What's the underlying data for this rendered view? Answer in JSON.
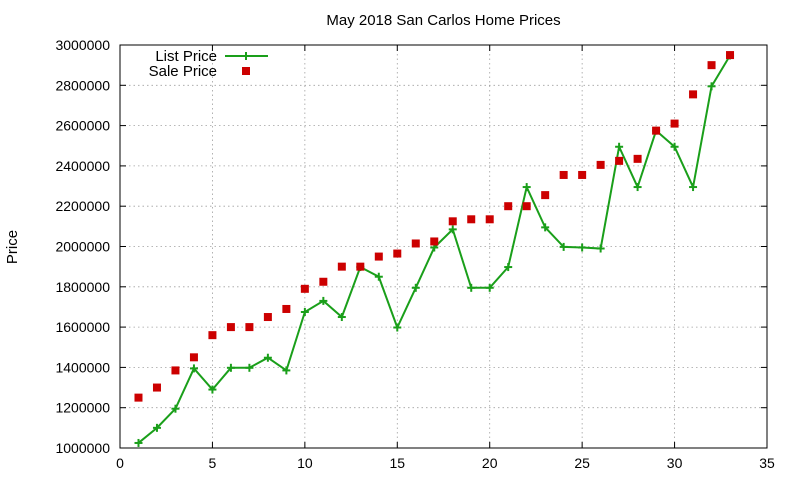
{
  "chart_data": {
    "type": "line",
    "title": "May 2018 San Carlos Home Prices",
    "xlabel": "",
    "ylabel": "Price",
    "xlim": [
      0,
      35
    ],
    "ylim": [
      1000000,
      3000000
    ],
    "xticks": [
      0,
      5,
      10,
      15,
      20,
      25,
      30,
      35
    ],
    "yticks": [
      1000000,
      1200000,
      1400000,
      1600000,
      1800000,
      2000000,
      2200000,
      2400000,
      2600000,
      2800000,
      3000000
    ],
    "grid": true,
    "legend": "top-left",
    "series": [
      {
        "name": "List Price",
        "style": "linespoints",
        "color": "#1a9f1a",
        "marker": "plus",
        "x": [
          1,
          2,
          3,
          4,
          5,
          6,
          7,
          8,
          9,
          10,
          11,
          12,
          13,
          14,
          15,
          16,
          17,
          18,
          19,
          20,
          21,
          22,
          23,
          24,
          25,
          26,
          27,
          28,
          29,
          30,
          31,
          32,
          33
        ],
        "y": [
          1025000,
          1100000,
          1195000,
          1395000,
          1290000,
          1398000,
          1398000,
          1448000,
          1385000,
          1675000,
          1730000,
          1650000,
          1898000,
          1850000,
          1598000,
          1795000,
          1995000,
          2085000,
          1795000,
          1795000,
          1898000,
          2295000,
          2095000,
          1998000,
          1995000,
          1990000,
          2495000,
          2295000,
          2575000,
          2495000,
          2295000,
          2795000,
          2948000
        ]
      },
      {
        "name": "Sale Price",
        "style": "points",
        "color": "#cc0000",
        "marker": "square",
        "x": [
          1,
          2,
          3,
          4,
          5,
          6,
          7,
          8,
          9,
          10,
          11,
          12,
          13,
          14,
          15,
          16,
          17,
          18,
          19,
          20,
          21,
          22,
          23,
          24,
          25,
          26,
          27,
          28,
          29,
          30,
          31,
          32,
          33
        ],
        "y": [
          1250000,
          1300000,
          1385000,
          1450000,
          1560000,
          1600000,
          1600000,
          1650000,
          1690000,
          1790000,
          1825000,
          1900000,
          1900000,
          1950000,
          1965000,
          2015000,
          2025000,
          2125000,
          2135000,
          2135000,
          2200000,
          2200000,
          2255000,
          2355000,
          2355000,
          2405000,
          2425000,
          2435000,
          2575000,
          2610000,
          2755000,
          2900000,
          2950000
        ]
      }
    ]
  }
}
